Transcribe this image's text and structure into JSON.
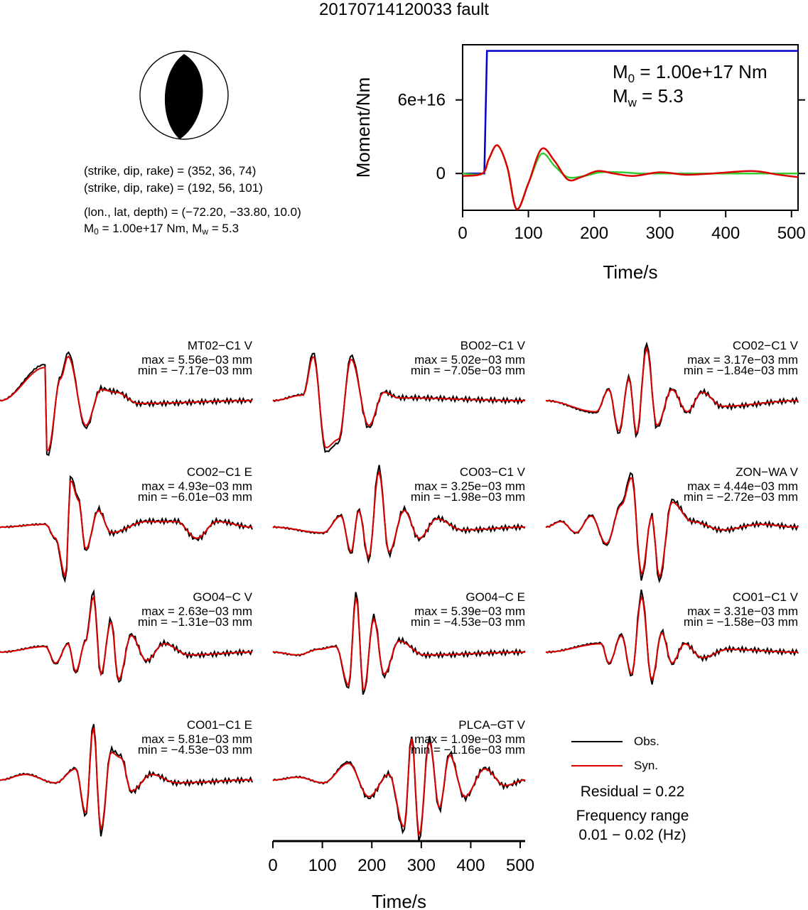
{
  "title": "20170714120033 fault",
  "focal": {
    "line1": "(strike, dip, rake) = (352, 36, 74)",
    "line2": "(strike, dip, rake) = (192, 56, 101)",
    "line3": "(lon., lat, depth) = (−72.20, −33.80, 10.0)",
    "m0_prefix": "M",
    "m0_sub": "0",
    "m0_mid": " = 1.00e+17 Nm, M",
    "mw_sub": "w",
    "mw_suffix": " = 5.3"
  },
  "moment_box": {
    "m0_prefix": "M",
    "m0_sub": "0",
    "m0_value": " = 1.00e+17 Nm",
    "mw_prefix": "M",
    "mw_sub": "w",
    "mw_value": " = 5.3"
  },
  "chart_data": [
    {
      "type": "line",
      "ylabel": "Moment/Nm",
      "xlabel": "Time/s",
      "xlim": [
        0,
        510
      ],
      "ylim": [
        -3e+16,
        1.05e+17
      ],
      "xticks": [
        0,
        100,
        200,
        300,
        400,
        500
      ],
      "yticks": [
        0,
        6e+16
      ],
      "ytick_labels": [
        "0",
        "6e+16"
      ],
      "series": [
        {
          "color": "#0000cc",
          "x": [
            0,
            33,
            37,
            510
          ],
          "y": [
            0,
            0,
            1e+17,
            1e+17
          ]
        },
        {
          "color": "#33cc33",
          "x": [
            0,
            30,
            40,
            53,
            68,
            82,
            100,
            120,
            140,
            160,
            185,
            210,
            240,
            270,
            300,
            350,
            400,
            450,
            510
          ],
          "y": [
            0,
            0,
            1.2e+16,
            2.3e+16,
            5000000000000000.0,
            -2.9e+16,
            -8000000000000000.0,
            1.6e+16,
            6000000000000000.0,
            -3000000000000000.0,
            -2000000000000000.0,
            1000000000000000.0,
            1000000000000000.0,
            0,
            0,
            0,
            0,
            0,
            0
          ]
        },
        {
          "color": "#dd0000",
          "x": [
            0,
            30,
            40,
            53,
            68,
            82,
            100,
            120,
            140,
            160,
            180,
            205,
            230,
            260,
            300,
            340,
            380,
            440,
            480,
            510
          ],
          "y": [
            -2000000000000000.0,
            0,
            1.2e+16,
            2.3e+16,
            5000000000000000.0,
            -2.9e+16,
            -8000000000000000.0,
            2e+16,
            1e+16,
            -5000000000000000.0,
            -3000000000000000.0,
            2000000000000000.0,
            0,
            -2000000000000000.0,
            1000000000000000.0,
            -1000000000000000.0,
            0,
            2000000000000000.0,
            -1000000000000000.0,
            -3000000000000000.0
          ]
        }
      ]
    },
    {
      "type": "line",
      "xlabel": "Time/s",
      "xlim": [
        0,
        510
      ],
      "xticks": [
        0,
        100,
        200,
        300,
        400,
        500
      ],
      "panels": [
        {
          "station": "MT02−C1 V",
          "max": "max = 5.56e−03 mm",
          "min": "min = −7.17e−03 mm"
        },
        {
          "station": "BO02−C1 V",
          "max": "max = 5.02e−03 mm",
          "min": "min = −7.05e−03 mm"
        },
        {
          "station": "CO02−C1 V",
          "max": "max = 3.17e−03 mm",
          "min": "min = −1.84e−03 mm"
        },
        {
          "station": "CO02−C1 E",
          "max": "max = 4.93e−03 mm",
          "min": "min = −6.01e−03 mm"
        },
        {
          "station": "CO03−C1 V",
          "max": "max = 3.25e−03 mm",
          "min": "min = −1.98e−03 mm"
        },
        {
          "station": "ZON−WA V",
          "max": "max = 4.44e−03 mm",
          "min": "min = −2.72e−03 mm"
        },
        {
          "station": "GO04−C V",
          "max": "max = 2.63e−03 mm",
          "min": "min = −1.31e−03 mm"
        },
        {
          "station": "GO04−C E",
          "max": "max = 5.39e−03 mm",
          "min": "min = −4.53e−03 mm"
        },
        {
          "station": "CO01−C1 V",
          "max": "max = 3.31e−03 mm",
          "min": "min = −1.58e−03 mm"
        },
        {
          "station": "CO01−C1 E",
          "max": "max = 5.81e−03 mm",
          "min": "min = −4.53e−03 mm"
        },
        {
          "station": "PLCA−GT V",
          "max": "max = 1.09e−03 mm",
          "min": "min = −1.16e−03 mm"
        }
      ],
      "legend": [
        {
          "name": "Obs.",
          "color": "#000000"
        },
        {
          "name": "Syn.",
          "color": "#dd0000"
        }
      ]
    }
  ],
  "residual": "Residual = 0.22",
  "freq_label": "Frequency range",
  "freq_value": "0.01 − 0.02 (Hz)"
}
